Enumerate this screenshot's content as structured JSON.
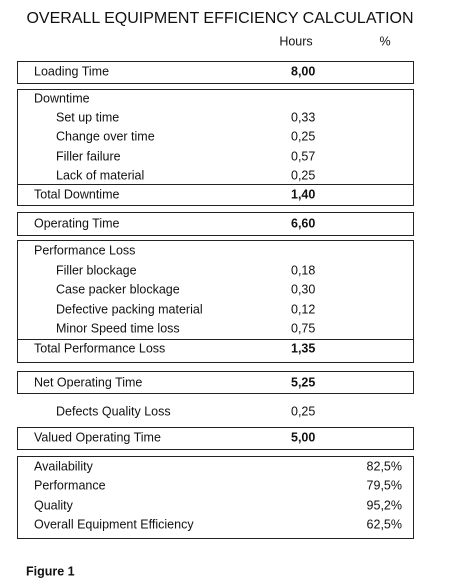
{
  "title": "OVERALL EQUIPMENT EFFICIENCY CALCULATION",
  "columns": {
    "hours": "Hours",
    "percent": "%"
  },
  "rows": [
    {
      "label": "Loading Time",
      "value": "8,00"
    },
    {
      "label": "Downtime"
    },
    {
      "label": "Set up time",
      "value": "0,33"
    },
    {
      "label": "Change over time",
      "value": "0,25"
    },
    {
      "label": "Filler failure",
      "value": "0,57"
    },
    {
      "label": "Lack of material",
      "value": "0,25"
    },
    {
      "label": "Total Downtime",
      "value": "1,40"
    },
    {
      "label": "Operating Time",
      "value": "6,60"
    },
    {
      "label": "Performance Loss"
    },
    {
      "label": "Filler blockage",
      "value": "0,18"
    },
    {
      "label": "Case packer blockage",
      "value": "0,30"
    },
    {
      "label": "Defective packing material",
      "value": "0,12"
    },
    {
      "label": "Minor Speed time loss",
      "value": "0,75"
    },
    {
      "label": "Total Performance Loss",
      "value": "1,35"
    },
    {
      "label": "Net Operating Time",
      "value": "5,25"
    },
    {
      "label": "Defects Quality Loss",
      "value": "0,25"
    },
    {
      "label": "Valued Operating Time",
      "value": "5,00"
    }
  ],
  "summary": [
    {
      "label": "Availability",
      "percent": "82,5%"
    },
    {
      "label": "Performance",
      "percent": "79,5%"
    },
    {
      "label": "Quality",
      "percent": "95,2%"
    },
    {
      "label": "Overall Equipment Efficiency",
      "percent": "62,5%"
    }
  ],
  "caption": "Figure 1"
}
